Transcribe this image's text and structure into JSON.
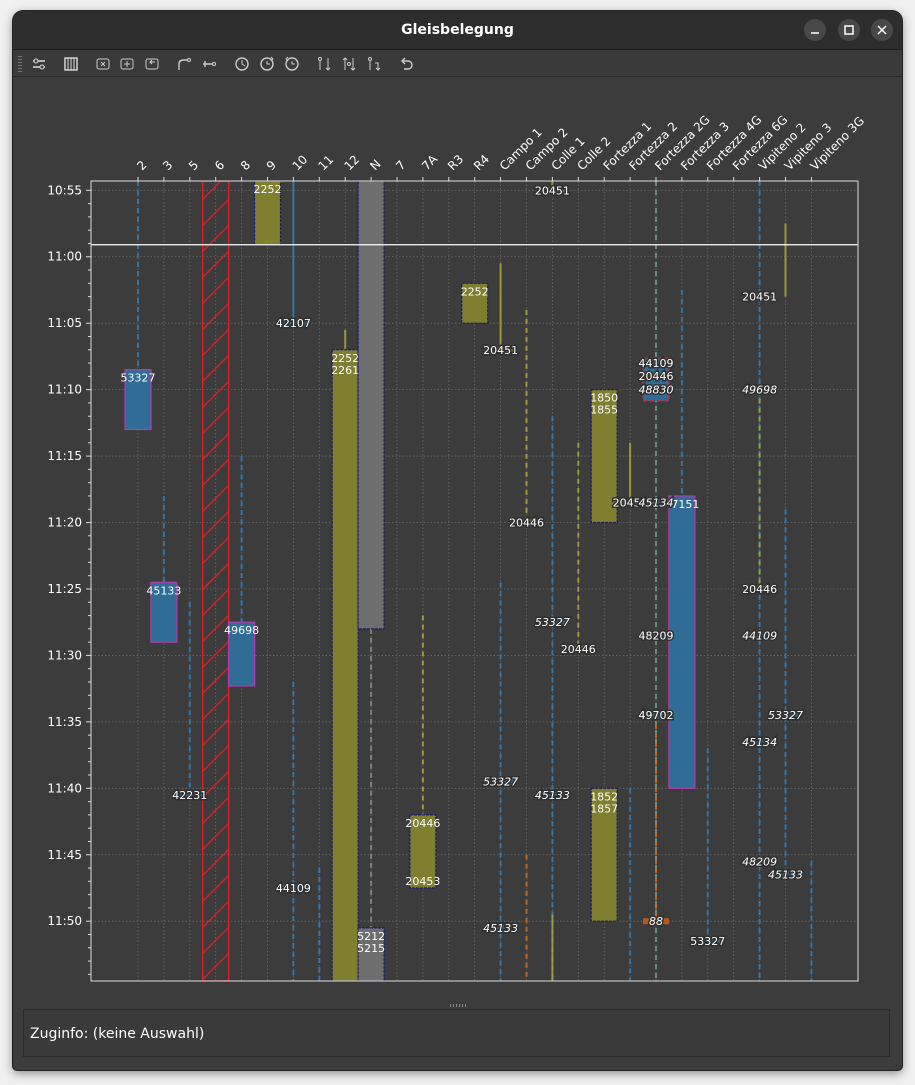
{
  "window": {
    "title": "Gleisbelegung",
    "buttons": [
      "minimize",
      "maximize",
      "close"
    ]
  },
  "toolbar": {
    "icons": [
      "settings-sliders-icon",
      "columns-icon",
      "close-box-icon",
      "plus-box-icon",
      "return-box-icon",
      "track-split-icon",
      "track-end-icon",
      "clock-icon",
      "clock-forward-icon",
      "clock-back-icon",
      "swap-icon",
      "swap-both-icon",
      "swap-down-icon",
      "undo-icon"
    ]
  },
  "colors": {
    "background": "#3c3c3c",
    "olive": "#7f7f2f",
    "blue": "#2f6d96",
    "gray": "#6e6e6e",
    "hatch": "#d2232a",
    "orange": "#b25a1e",
    "border_dark": "#1c1c6e",
    "border_magenta": "#b23cb2"
  },
  "chart_data": {
    "type": "track_occupancy",
    "title": "Gleisbelegung",
    "tracks": [
      "2",
      "3",
      "5",
      "6",
      "8",
      "9",
      "10",
      "11",
      "12",
      "N",
      "7",
      "7A",
      "R3",
      "R4",
      "Campo 1",
      "Campo 2",
      "Colle 1",
      "Colle 2",
      "Fortezza 1",
      "Fortezza 2",
      "Fortezza 2G",
      "Fortezza 3",
      "Fortezza 4G",
      "Fortezza 6G",
      "Vipiteno 2",
      "Vipiteno 3",
      "Vipiteno 3G"
    ],
    "y_range_minutes": [
      654.3,
      714.5
    ],
    "y_ticks": [
      "10:55",
      "11:00",
      "11:05",
      "11:10",
      "11:15",
      "11:20",
      "11:25",
      "11:30",
      "11:35",
      "11:40",
      "11:45",
      "11:50"
    ],
    "y_tick_minutes": [
      655,
      660,
      665,
      670,
      675,
      680,
      685,
      690,
      695,
      700,
      705,
      710
    ],
    "current_time_minutes": 659.1,
    "blocked_tracks": [
      {
        "track": "6",
        "start": 654.3,
        "end": 714.5
      }
    ],
    "occupancies": [
      {
        "track": "2",
        "start": 668.5,
        "end": 673.0,
        "label": "53327",
        "color": "blue",
        "border": "magenta"
      },
      {
        "track": "3",
        "start": 684.5,
        "end": 689.0,
        "label": "45133",
        "color": "blue",
        "border": "magenta"
      },
      {
        "track": "8",
        "start": 687.5,
        "end": 692.3,
        "label": "49698",
        "color": "blue",
        "border": "magenta"
      },
      {
        "track": "9",
        "start": 654.3,
        "end": 659.1,
        "label": "2252",
        "color": "olive",
        "border": "dark"
      },
      {
        "track": "12",
        "start": 667.0,
        "end": 714.5,
        "label": "2252",
        "label2": "2261",
        "color": "olive",
        "border": "dark"
      },
      {
        "track": "N",
        "start": 654.3,
        "end": 688.0,
        "label": "",
        "color": "gray",
        "border": "dark"
      },
      {
        "track": "N",
        "start": 710.5,
        "end": 714.5,
        "label": "5212",
        "label2": "5215",
        "color": "gray",
        "border": "dark"
      },
      {
        "track": "7A",
        "start": 702.0,
        "end": 707.5,
        "label": "20446",
        "label3": "20453",
        "color": "olive",
        "border": "dark"
      },
      {
        "track": "R4",
        "start": 662.0,
        "end": 665.0,
        "label": "2252",
        "color": "olive",
        "border": "dark"
      },
      {
        "track": "Fortezza 1",
        "start": 670.0,
        "end": 680.0,
        "label": "1850",
        "label2": "1855",
        "color": "olive",
        "border": "dark"
      },
      {
        "track": "Fortezza 1",
        "start": 700.0,
        "end": 710.0,
        "label": "1852",
        "label2": "1857",
        "color": "olive",
        "border": "dark"
      },
      {
        "track": "Fortezza 3",
        "start": 678.0,
        "end": 700.0,
        "label": "47151",
        "color": "blue",
        "border": "magenta"
      }
    ],
    "short_stops": [
      {
        "track": "Colle 1",
        "at": 655.0,
        "label": "20451",
        "color": "olive"
      },
      {
        "track": "10",
        "at": 665.0,
        "label": "42107",
        "color": "blue"
      },
      {
        "track": "Campo 1",
        "at": 667.0,
        "label": "20451",
        "color": "olive"
      },
      {
        "track": "Campo 2",
        "at": 680.0,
        "label": "20446",
        "color": "olive"
      },
      {
        "track": "Fortezza 2",
        "at": 678.5,
        "label": "20451",
        "color": "olive"
      },
      {
        "track": "Fortezza 2G",
        "at": 668.0,
        "label": "44109",
        "label2": "20446",
        "color": "blue",
        "marked": true
      },
      {
        "track": "Fortezza 2G",
        "at": 670.0,
        "label": "48830",
        "color": "blue",
        "italic": true
      },
      {
        "track": "Fortezza 2G",
        "at": 678.5,
        "label": "45134",
        "color": "blue",
        "italic": true
      },
      {
        "track": "Vipiteno 2",
        "at": 663.0,
        "label": "20451",
        "color": "olive"
      },
      {
        "track": "Vipiteno 2",
        "at": 670.0,
        "label": "49698",
        "color": "blue",
        "italic": true
      },
      {
        "track": "Vipiteno 2",
        "at": 685.0,
        "label": "20446",
        "color": "olive"
      },
      {
        "track": "Colle 1",
        "at": 687.5,
        "label": "53327",
        "color": "blue",
        "italic": true
      },
      {
        "track": "Colle 2",
        "at": 689.5,
        "label": "20446",
        "color": "olive"
      },
      {
        "track": "Fortezza 2G",
        "at": 688.5,
        "label": "48209",
        "color": "blue"
      },
      {
        "track": "Vipiteno 2",
        "at": 688.5,
        "label": "44109",
        "color": "blue",
        "italic": true
      },
      {
        "track": "Fortezza 2G",
        "at": 694.5,
        "label": "49702",
        "color": "blue"
      },
      {
        "track": "Vipiteno 3",
        "at": 694.5,
        "label": "53327",
        "color": "blue",
        "italic": true
      },
      {
        "track": "Vipiteno 2",
        "at": 696.5,
        "label": "45134",
        "color": "blue",
        "italic": true
      },
      {
        "track": "5",
        "at": 700.5,
        "label": "42231",
        "color": "blue"
      },
      {
        "track": "Campo 1",
        "at": 699.5,
        "label": "53327",
        "color": "blue",
        "italic": true
      },
      {
        "track": "Colle 1",
        "at": 700.5,
        "label": "45133",
        "color": "blue",
        "italic": true
      },
      {
        "track": "Vipiteno 2",
        "at": 705.5,
        "label": "48209",
        "color": "blue",
        "italic": true
      },
      {
        "track": "Vipiteno 3",
        "at": 706.5,
        "label": "45133",
        "color": "blue",
        "italic": true
      },
      {
        "track": "10",
        "at": 707.5,
        "label": "44109",
        "color": "blue"
      },
      {
        "track": "Campo 1",
        "at": 710.5,
        "label": "45133",
        "color": "blue",
        "italic": true
      },
      {
        "track": "Fortezza 2G",
        "at": 710.0,
        "label": "88",
        "color": "orange",
        "italic": true
      },
      {
        "track": "Fortezza 4G",
        "at": 711.5,
        "label": "53327",
        "color": "blue"
      }
    ],
    "dashed_paths": [
      {
        "track": "2",
        "from": 654.3,
        "to": 668.5,
        "color": "blue"
      },
      {
        "track": "3",
        "from": 678.0,
        "to": 684.5,
        "color": "blue"
      },
      {
        "track": "5",
        "from": 686.0,
        "to": 700.5,
        "color": "blue"
      },
      {
        "track": "8",
        "from": 675.0,
        "to": 687.5,
        "color": "blue"
      },
      {
        "track": "10",
        "from": 654.3,
        "to": 665.0,
        "color": "blue",
        "solid": true
      },
      {
        "track": "10",
        "from": 692.0,
        "to": 714.5,
        "color": "blue"
      },
      {
        "track": "11",
        "from": 706.0,
        "to": 714.5,
        "color": "blue"
      },
      {
        "track": "9",
        "from": 654.3,
        "to": 655.5,
        "color": "olive",
        "solid": true
      },
      {
        "track": "12",
        "from": 665.5,
        "to": 667.0,
        "color": "olive",
        "solid": true
      },
      {
        "track": "N",
        "from": 688.0,
        "to": 710.5,
        "color": "gray"
      },
      {
        "track": "7A",
        "from": 687.0,
        "to": 702.0,
        "color": "olive"
      },
      {
        "track": "Campo 1",
        "from": 660.5,
        "to": 667.0,
        "color": "olive",
        "solid": true
      },
      {
        "track": "Campo 1",
        "from": 684.5,
        "to": 714.5,
        "color": "blue"
      },
      {
        "track": "Campo 2",
        "from": 664.0,
        "to": 680.0,
        "color": "olive"
      },
      {
        "track": "Campo 2",
        "from": 705.0,
        "to": 714.5,
        "color": "orange"
      },
      {
        "track": "Colle 1",
        "from": 654.3,
        "to": 655.0,
        "color": "olive",
        "solid": true
      },
      {
        "track": "Colle 1",
        "from": 672.0,
        "to": 714.5,
        "color": "blue"
      },
      {
        "track": "Colle 1",
        "from": 709.5,
        "to": 714.5,
        "color": "olive",
        "solid": true
      },
      {
        "track": "Colle 2",
        "from": 674.0,
        "to": 689.5,
        "color": "olive"
      },
      {
        "track": "Fortezza 2",
        "from": 674.0,
        "to": 678.5,
        "color": "olive",
        "solid": true
      },
      {
        "track": "Fortezza 2",
        "from": 700.0,
        "to": 714.5,
        "color": "blue"
      },
      {
        "track": "Fortezza 2G",
        "from": 654.3,
        "to": 714.5,
        "color": "teal"
      },
      {
        "track": "Fortezza 2G",
        "from": 694.5,
        "to": 710.0,
        "color": "orange"
      },
      {
        "track": "Fortezza 3",
        "from": 662.5,
        "to": 678.0,
        "color": "blue"
      },
      {
        "track": "Fortezza 4G",
        "from": 697.0,
        "to": 711.5,
        "color": "blue"
      },
      {
        "track": "Vipiteno 2",
        "from": 654.3,
        "to": 714.5,
        "color": "blue"
      },
      {
        "track": "Vipiteno 2",
        "from": 670.0,
        "to": 685.0,
        "color": "olive"
      },
      {
        "track": "Vipiteno 3",
        "from": 657.5,
        "to": 663.0,
        "color": "olive",
        "solid": true
      },
      {
        "track": "Vipiteno 3",
        "from": 679.0,
        "to": 706.5,
        "color": "blue"
      },
      {
        "track": "Vipiteno 3G",
        "from": 705.5,
        "to": 714.5,
        "color": "blue"
      }
    ]
  },
  "infobar": {
    "label": "Zuginfo:",
    "value": "(keine Auswahl)"
  }
}
